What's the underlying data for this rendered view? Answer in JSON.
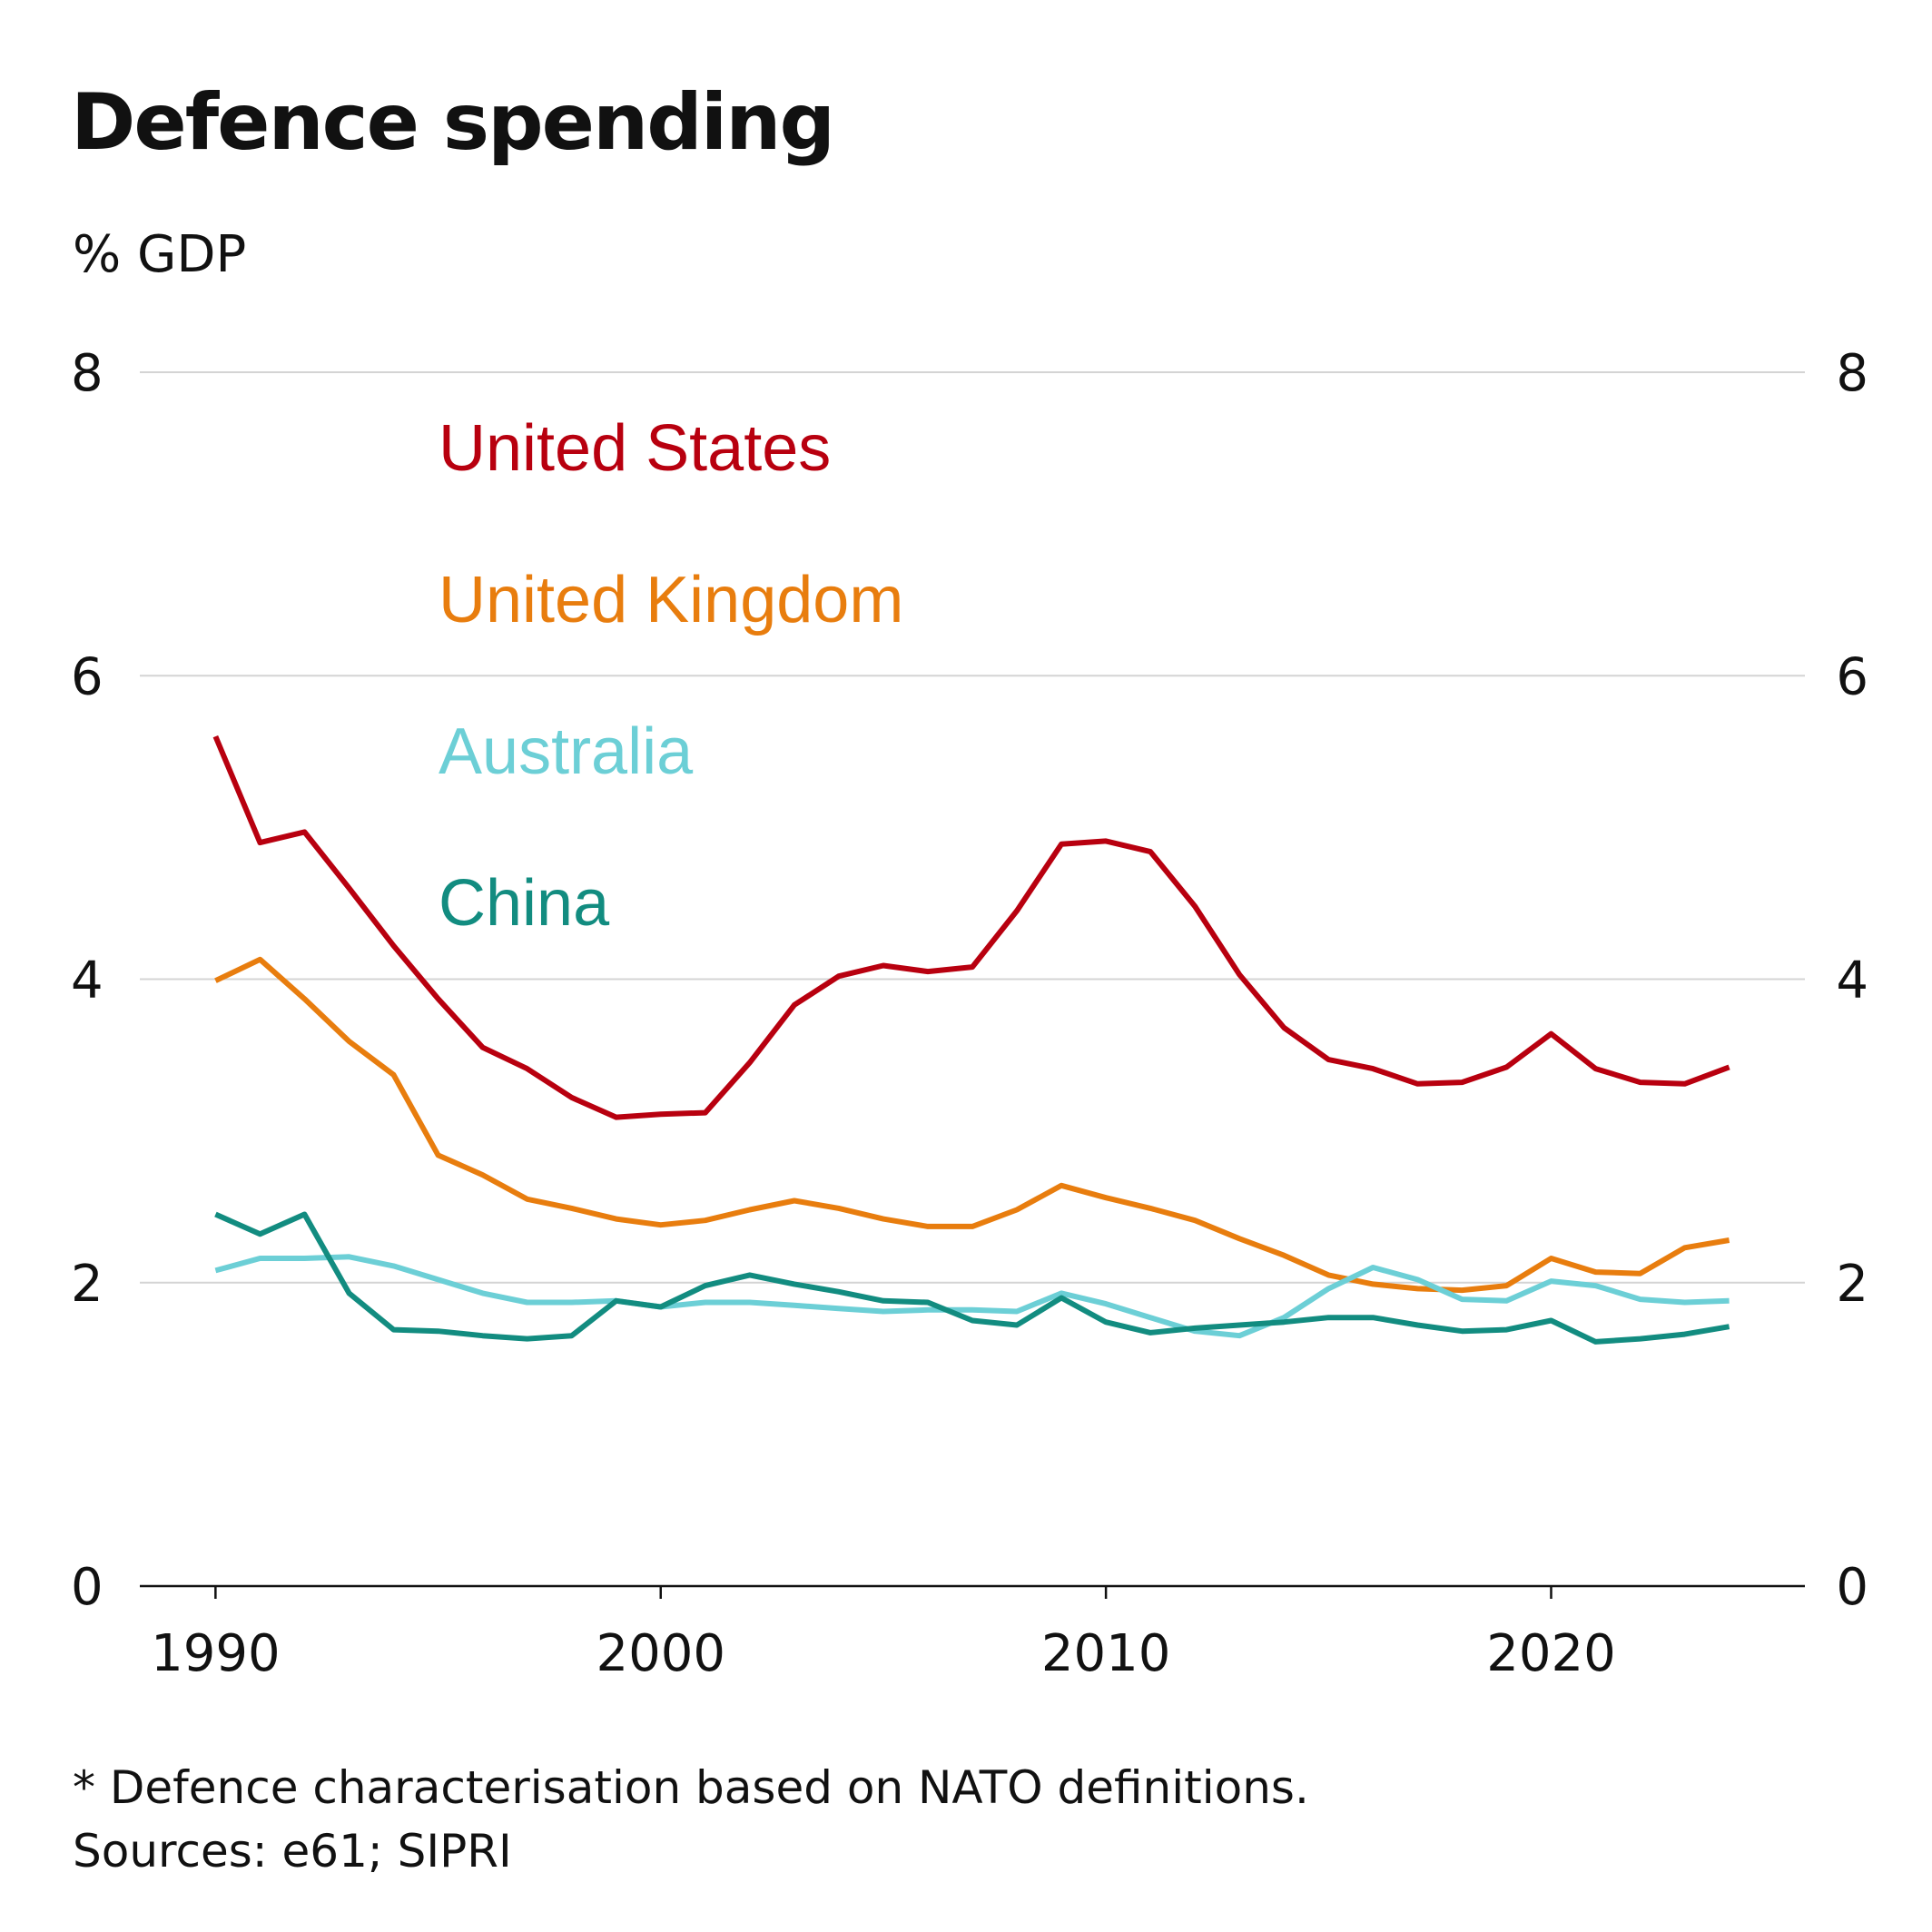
{
  "title": "Defence spending",
  "unit_label": "% GDP",
  "footnote": "* Defence characterisation based on NATO definitions.",
  "sources": "Sources: e61; SIPRI",
  "chart_data": {
    "type": "line",
    "title": "Defence spending",
    "ylabel": "% GDP",
    "xlabel": "",
    "xlim": [
      1988.3,
      2025.7
    ],
    "ylim": [
      0,
      8
    ],
    "x_ticks": [
      1990,
      2000,
      2010,
      2020
    ],
    "y_ticks": [
      0,
      2,
      4,
      6,
      8
    ],
    "grid": true,
    "legend_placement": "top-left, stacked labels",
    "x": [
      1990,
      1991,
      1992,
      1993,
      1994,
      1995,
      1996,
      1997,
      1998,
      1999,
      2000,
      2001,
      2002,
      2003,
      2004,
      2005,
      2006,
      2007,
      2008,
      2009,
      2010,
      2011,
      2012,
      2013,
      2014,
      2015,
      2016,
      2017,
      2018,
      2019,
      2020,
      2021,
      2022,
      2023,
      2024
    ],
    "series": [
      {
        "name": "United States",
        "color": "#b8000f",
        "values": [
          5.6,
          4.9,
          4.97,
          4.6,
          4.22,
          3.87,
          3.55,
          3.41,
          3.22,
          3.09,
          3.11,
          3.12,
          3.45,
          3.83,
          4.02,
          4.09,
          4.05,
          4.08,
          4.45,
          4.89,
          4.91,
          4.84,
          4.48,
          4.03,
          3.68,
          3.47,
          3.41,
          3.31,
          3.32,
          3.42,
          3.64,
          3.41,
          3.32,
          3.31,
          3.42
        ]
      },
      {
        "name": "United Kingdom",
        "color": "#e87d0e",
        "values": [
          3.99,
          4.13,
          3.87,
          3.59,
          3.37,
          2.84,
          2.71,
          2.55,
          2.49,
          2.42,
          2.38,
          2.41,
          2.48,
          2.54,
          2.49,
          2.42,
          2.37,
          2.37,
          2.48,
          2.64,
          2.56,
          2.49,
          2.41,
          2.29,
          2.18,
          2.05,
          1.99,
          1.96,
          1.95,
          1.98,
          2.16,
          2.07,
          2.06,
          2.23,
          2.28
        ]
      },
      {
        "name": "Australia",
        "color": "#6ccfd6",
        "values": [
          2.08,
          2.16,
          2.16,
          2.17,
          2.11,
          2.02,
          1.93,
          1.87,
          1.87,
          1.88,
          1.84,
          1.87,
          1.87,
          1.85,
          1.83,
          1.81,
          1.82,
          1.82,
          1.81,
          1.93,
          1.86,
          1.77,
          1.68,
          1.65,
          1.77,
          1.96,
          2.1,
          2.02,
          1.89,
          1.88,
          2.01,
          1.98,
          1.89,
          1.87,
          1.88
        ]
      },
      {
        "name": "China",
        "color": "#128c80",
        "values": [
          2.45,
          2.32,
          2.45,
          1.93,
          1.69,
          1.68,
          1.65,
          1.63,
          1.65,
          1.88,
          1.84,
          1.98,
          2.05,
          1.99,
          1.94,
          1.88,
          1.87,
          1.75,
          1.72,
          1.9,
          1.74,
          1.67,
          1.7,
          1.72,
          1.74,
          1.77,
          1.77,
          1.72,
          1.68,
          1.69,
          1.75,
          1.61,
          1.63,
          1.66,
          1.71
        ]
      }
    ]
  }
}
